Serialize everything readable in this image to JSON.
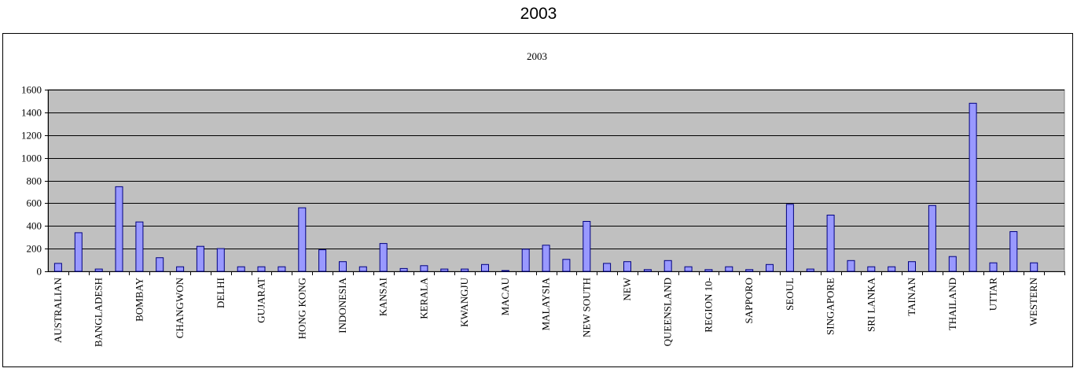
{
  "page_title": "2003",
  "chart_data": {
    "type": "bar",
    "title": "2003",
    "xlabel": "",
    "ylabel": "",
    "ylim": [
      0,
      1600
    ],
    "yticks": [
      0,
      200,
      400,
      600,
      800,
      1000,
      1200,
      1400,
      1600
    ],
    "grid": true,
    "legend": "none",
    "plot_background": "#c0c0c0",
    "bar_color": "#9999ff",
    "bar_edge_color": "#000080",
    "categories": [
      "AUSTRALIAN",
      "",
      "BANGLADESH",
      "",
      "BOMBAY",
      "",
      "CHANGWON",
      "",
      "DELHI",
      "",
      "GUJARAT",
      "",
      "HONG KONG",
      "",
      "INDONESIA",
      "",
      "KANSAI",
      "",
      "KERALA",
      "",
      "KWANGJU",
      "",
      "MACAU",
      "",
      "MALAYSIA",
      "",
      "NEW SOUTH",
      "",
      "NEW",
      "",
      "QUEENSLAND",
      "",
      "REGION 10-",
      "",
      "SAPPORO",
      "",
      "SEOUL",
      "",
      "SINGAPORE",
      "",
      "SRI LANKA",
      "",
      "TAINAN",
      "",
      "THAILAND",
      "",
      "UTTAR",
      "",
      "WESTERN",
      ""
    ],
    "values": [
      70,
      340,
      20,
      745,
      435,
      120,
      40,
      220,
      200,
      40,
      40,
      40,
      560,
      190,
      85,
      40,
      245,
      25,
      50,
      20,
      20,
      60,
      5,
      195,
      230,
      105,
      440,
      70,
      85,
      15,
      95,
      40,
      15,
      40,
      15,
      60,
      590,
      20,
      495,
      95,
      40,
      40,
      85,
      580,
      130,
      1480,
      75,
      350,
      75,
      0
    ]
  }
}
